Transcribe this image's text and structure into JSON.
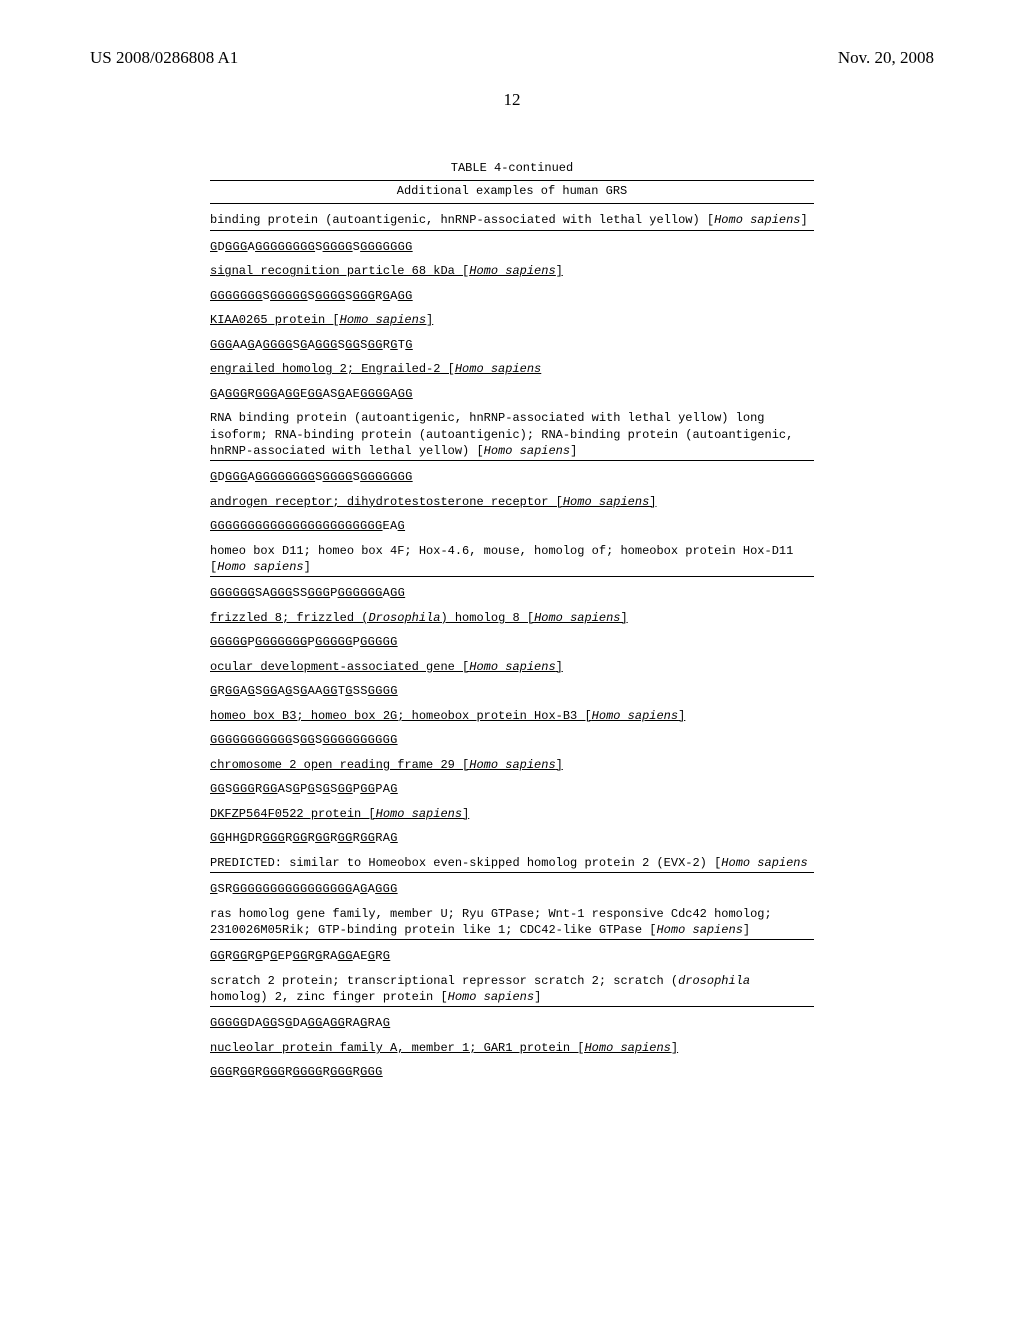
{
  "header": {
    "patent_id": "US 2008/0286808 A1",
    "date": "Nov. 20, 2008"
  },
  "page_number": "12",
  "table": {
    "title": "TABLE 4-continued",
    "caption": "Additional examples of human GRS"
  },
  "entries": [
    {
      "description_plain": "binding protein (autoantigenic, hnRNP-associated with lethal yellow) [",
      "species_after": "Homo sapiens",
      "trailing": "]",
      "ruled": true,
      "sequence_html": "<span class='u'>G</span>D<span class='u'>GGG</span>A<span class='u'>GGGGGGGG</span>S<span class='u'>GGGG</span>S<span class='u'>GGGGGGG</span>"
    },
    {
      "description_plain": "signal recognition particle 68 kDa [",
      "species_after": "Homo sapiens",
      "trailing": "]",
      "ruled": false,
      "underlined_name": true,
      "sequence_html": "<span class='u'>GGGGGGG</span>S<span class='u'>GGGGG</span>S<span class='u'>GGGG</span>S<span class='u'>GGG</span>R<span class='u'>G</span>A<span class='u'>GG</span>"
    },
    {
      "description_plain": "KIAA0265 protein [",
      "species_after": "Homo sapiens",
      "trailing": "]",
      "underlined_name": true,
      "sequence_html": "<span class='u'>GGG</span>AA<span class='u'>G</span>A<span class='u'>GGGG</span>S<span class='u'>G</span>A<span class='u'>GGG</span>S<span class='u'>GG</span>S<span class='u'>GG</span>R<span class='u'>G</span>T<span class='u'>G</span>"
    },
    {
      "description_plain": "engrailed homolog 2; Engrailed-2 [",
      "species_after": "Homo sapiens",
      "trailing": "",
      "underlined_name": true,
      "sequence_html": "<span class='u'>G</span>A<span class='u'>GGG</span>R<span class='u'>GGG</span>A<span class='u'>GG</span>E<span class='u'>GG</span>AS<span class='u'>G</span>AE<span class='u'>GGGG</span>A<span class='u'>GG</span>"
    },
    {
      "description_multiline": "RNA binding protein (autoantigenic, hnRNP-associated with lethal yellow) long isoform; RNA-binding protein (autoantigenic); RNA-binding protein (autoantigenic, hnRNP-associated with lethal yellow) [",
      "species_after": "Homo sapiens",
      "trailing": "]",
      "ruled": true,
      "sequence_html": "<span class='u'>G</span>D<span class='u'>GGG</span>A<span class='u'>GGGGGGGG</span>S<span class='u'>GGGG</span>S<span class='u'>GGGGGGG</span>"
    },
    {
      "description_plain": "androgen receptor; dihydrotestosterone receptor [",
      "species_after": "Homo sapiens",
      "trailing": "]",
      "underlined_name": true,
      "sequence_html": "<span class='u'>GGGGGGGGGGGGGGGGGGGGGGG</span>EA<span class='u'>G</span>"
    },
    {
      "description_multiline": "homeo box D11; homeo box 4F; Hox-4.6, mouse, homolog of; homeobox protein Hox-D11 [",
      "species_after": "Homo sapiens",
      "trailing": "]",
      "ruled": true,
      "sequence_html": "<span class='u'>GGGGGG</span>SA<span class='u'>GGG</span>SS<span class='u'>GGG</span>P<span class='u'>GGGGGG</span>A<span class='u'>GG</span>"
    },
    {
      "description_plain": "frizzled 8; frizzled (",
      "species_mid": "Drosophila",
      "description_after": ") homolog 8 [",
      "species_after": "Homo sapiens",
      "trailing": "]",
      "underlined_name": true,
      "sequence_html": "<span class='u'>GGGGG</span>P<span class='u'>GGGGGGG</span>P<span class='u'>GGGGG</span>P<span class='u'>GGGGG</span>"
    },
    {
      "description_plain": "ocular development-associated gene [",
      "species_after": "Homo sapiens",
      "trailing": "]",
      "underlined_name": true,
      "sequence_html": "<span class='u'>G</span>R<span class='u'>GG</span>A<span class='u'>G</span>S<span class='u'>GG</span>A<span class='u'>G</span>S<span class='u'>G</span>AA<span class='u'>GG</span>T<span class='u'>G</span>SS<span class='u'>GGGG</span>"
    },
    {
      "description_plain": "homeo box B3; homeo box 2G; homeobox protein Hox-B3 [",
      "species_after": "Homo sapiens",
      "trailing": "]",
      "underlined_name": true,
      "sequence_html": "<span class='u'>GGGGGGGGGGG</span>S<span class='u'>GG</span>S<span class='u'>GGGGGGGGGG</span>"
    },
    {
      "description_plain": "chromosome 2 open reading frame 29 [",
      "species_after": "Homo sapiens",
      "trailing": "]",
      "underlined_name": true,
      "sequence_html": "<span class='u'>GG</span>S<span class='u'>GGG</span>R<span class='u'>GG</span>AS<span class='u'>G</span>P<span class='u'>G</span>S<span class='u'>G</span>S<span class='u'>GG</span>P<span class='u'>GG</span>PA<span class='u'>G</span>"
    },
    {
      "description_plain": "DKFZP564F0522 protein [",
      "species_after": "Homo sapiens",
      "trailing": "]",
      "underlined_name": true,
      "sequence_html": "<span class='u'>GG</span>HH<span class='u'>G</span>DR<span class='u'>GGG</span>R<span class='u'>GG</span>R<span class='u'>GG</span>R<span class='u'>GG</span>R<span class='u'>GG</span>RA<span class='u'>G</span>"
    },
    {
      "description_multiline": "PREDICTED: similar to Homeobox even-skipped homolog protein 2 (EVX-2) [",
      "species_after": "Homo sapiens",
      "trailing": "",
      "ruled": true,
      "sequence_html": "<span class='u'>G</span>SR<span class='u'>GGGGGGGGGGGGGGGG</span>A<span class='u'>G</span>A<span class='u'>GGG</span>"
    },
    {
      "description_multiline": "ras homolog gene family, member U; Ryu GTPase; Wnt-1 responsive Cdc42 homolog; 2310026M05Rik; GTP-binding protein like 1; CDC42-like GTPase [",
      "species_after": "Homo sapiens",
      "trailing": "]",
      "ruled": true,
      "sequence_html": "<span class='u'>GG</span>R<span class='u'>GG</span>R<span class='u'>G</span>P<span class='u'>G</span>EP<span class='u'>GG</span>R<span class='u'>G</span>RA<span class='u'>GG</span>AE<span class='u'>G</span>R<span class='u'>G</span>"
    },
    {
      "description_multiline": "scratch 2 protein; transcriptional repressor scratch 2; scratch (",
      "species_mid": "drosophila",
      "description_after": " homolog) 2, zinc finger protein [",
      "species_after": "Homo sapiens",
      "trailing": "]",
      "ruled": true,
      "sequence_html": "<span class='u'>GGGGG</span>DA<span class='u'>GG</span>S<span class='u'>G</span>DA<span class='u'>GG</span>A<span class='u'>GG</span>RA<span class='u'>G</span>RA<span class='u'>G</span>"
    },
    {
      "description_plain": "nucleolar protein family A, member 1; GAR1 protein [",
      "species_after": "Homo sapiens",
      "trailing": "]",
      "underlined_name": true,
      "sequence_html": "<span class='u'>GGG</span>R<span class='u'>GG</span>R<span class='u'>GGG</span>R<span class='u'>GGGG</span>R<span class='u'>GGG</span>R<span class='u'>GGG</span>"
    }
  ]
}
